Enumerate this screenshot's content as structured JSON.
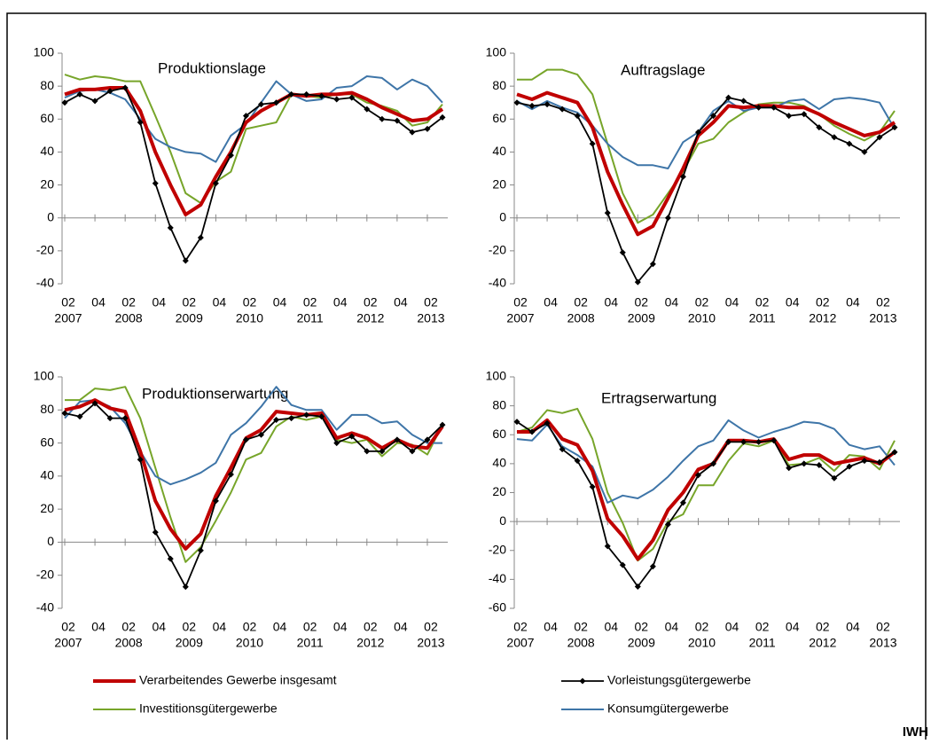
{
  "chart_data": [
    {
      "type": "line",
      "title": "Produktionslage",
      "categories": [
        "02",
        null,
        "04",
        null,
        "02",
        null,
        "04",
        null,
        "02",
        null,
        "04",
        null,
        "02",
        null,
        "04",
        null,
        "02",
        null,
        "04",
        null,
        "02",
        null,
        "04",
        null,
        "02",
        null
      ],
      "years": [
        "2007",
        null,
        null,
        null,
        "2008",
        null,
        null,
        null,
        "2009",
        null,
        null,
        null,
        "2010",
        null,
        null,
        null,
        "2011",
        null,
        null,
        null,
        "2012",
        null,
        null,
        null,
        "2013",
        null
      ],
      "ylim": [
        -40,
        100
      ],
      "yticks": [
        -40,
        -20,
        0,
        20,
        40,
        60,
        80,
        100
      ],
      "series": [
        {
          "name": "Verarbeitendes Gewerbe insgesamt",
          "color": "#c00000",
          "width": 4,
          "values": [
            75,
            78,
            78,
            79,
            79,
            65,
            40,
            20,
            2,
            8,
            25,
            40,
            58,
            65,
            70,
            75,
            74,
            75,
            75,
            76,
            72,
            67,
            63,
            59,
            60,
            66
          ]
        },
        {
          "name": "Vorleistungsgütergewerbe",
          "color": "#000000",
          "width": 1.8,
          "marker": "diamond",
          "values": [
            70,
            75,
            71,
            77,
            79,
            58,
            21,
            -6,
            -26,
            -12,
            21,
            38,
            62,
            69,
            70,
            75,
            75,
            74,
            72,
            73,
            66,
            60,
            59,
            52,
            54,
            61
          ]
        },
        {
          "name": "Investitionsgütergewerbe",
          "color": "#77a52a",
          "width": 2,
          "values": [
            87,
            84,
            86,
            85,
            83,
            83,
            62,
            40,
            15,
            9,
            22,
            28,
            54,
            56,
            58,
            75,
            74,
            73,
            75,
            75,
            70,
            68,
            65,
            56,
            58,
            69
          ]
        },
        {
          "name": "Konsumgütergewerbe",
          "color": "#3e75a8",
          "width": 2,
          "values": [
            73,
            77,
            78,
            76,
            72,
            60,
            48,
            43,
            40,
            39,
            34,
            50,
            57,
            70,
            83,
            75,
            71,
            72,
            79,
            80,
            86,
            85,
            78,
            84,
            80,
            70
          ]
        }
      ]
    },
    {
      "type": "line",
      "title": "Auftragslage",
      "categories": [
        "02",
        null,
        "04",
        null,
        "02",
        null,
        "04",
        null,
        "02",
        null,
        "04",
        null,
        "02",
        null,
        "04",
        null,
        "02",
        null,
        "04",
        null,
        "02",
        null,
        "04",
        null,
        "02",
        null
      ],
      "years": [
        "2007",
        null,
        null,
        null,
        "2008",
        null,
        null,
        null,
        "2009",
        null,
        null,
        null,
        "2010",
        null,
        null,
        null,
        "2011",
        null,
        null,
        null,
        "2012",
        null,
        null,
        null,
        "2013",
        null
      ],
      "ylim": [
        -40,
        100
      ],
      "yticks": [
        -40,
        -20,
        0,
        20,
        40,
        60,
        80,
        100
      ],
      "series": [
        {
          "name": "Verarbeitendes Gewerbe insgesamt",
          "color": "#c00000",
          "width": 4,
          "values": [
            75,
            72,
            76,
            73,
            70,
            55,
            28,
            8,
            -10,
            -5,
            12,
            30,
            50,
            58,
            68,
            67,
            68,
            68,
            67,
            67,
            63,
            58,
            54,
            50,
            52,
            58
          ]
        },
        {
          "name": "Vorleistungsgütergewerbe",
          "color": "#000000",
          "width": 1.8,
          "marker": "diamond",
          "values": [
            70,
            68,
            69,
            66,
            62,
            45,
            3,
            -21,
            -39,
            -28,
            0,
            25,
            52,
            62,
            73,
            71,
            67,
            67,
            62,
            63,
            55,
            49,
            45,
            40,
            49,
            55
          ]
        },
        {
          "name": "Investitionsgütergewerbe",
          "color": "#77a52a",
          "width": 2,
          "values": [
            84,
            84,
            90,
            90,
            87,
            75,
            45,
            15,
            -3,
            2,
            15,
            28,
            45,
            48,
            58,
            64,
            69,
            70,
            70,
            68,
            63,
            56,
            51,
            47,
            52,
            65
          ]
        },
        {
          "name": "Konsumgütergewerbe",
          "color": "#3e75a8",
          "width": 2,
          "values": [
            71,
            66,
            71,
            67,
            64,
            56,
            45,
            37,
            32,
            32,
            30,
            46,
            52,
            65,
            71,
            65,
            67,
            67,
            71,
            72,
            66,
            72,
            73,
            72,
            70,
            54
          ]
        }
      ]
    },
    {
      "type": "line",
      "title": "Produktionserwartung",
      "categories": [
        "02",
        null,
        "04",
        null,
        "02",
        null,
        "04",
        null,
        "02",
        null,
        "04",
        null,
        "02",
        null,
        "04",
        null,
        "02",
        null,
        "04",
        null,
        "02",
        null,
        "04",
        null,
        "02",
        null
      ],
      "years": [
        "2007",
        null,
        null,
        null,
        "2008",
        null,
        null,
        null,
        "2009",
        null,
        null,
        null,
        "2010",
        null,
        null,
        null,
        "2011",
        null,
        null,
        null,
        "2012",
        null,
        null,
        null,
        "2013",
        null
      ],
      "ylim": [
        -40,
        100
      ],
      "yticks": [
        -40,
        -20,
        0,
        20,
        40,
        60,
        80,
        100
      ],
      "series": [
        {
          "name": "Verarbeitendes Gewerbe insgesamt",
          "color": "#c00000",
          "width": 4,
          "values": [
            80,
            82,
            86,
            81,
            79,
            55,
            25,
            8,
            -4,
            5,
            28,
            45,
            63,
            68,
            79,
            78,
            77,
            78,
            63,
            66,
            63,
            57,
            62,
            58,
            57,
            70
          ]
        },
        {
          "name": "Vorleistungsgütergewerbe",
          "color": "#000000",
          "width": 1.8,
          "marker": "diamond",
          "values": [
            78,
            76,
            84,
            75,
            75,
            50,
            6,
            -10,
            -27,
            -5,
            25,
            41,
            62,
            65,
            74,
            75,
            77,
            76,
            60,
            64,
            55,
            55,
            62,
            55,
            62,
            71
          ]
        },
        {
          "name": "Investitionsgütergewerbe",
          "color": "#77a52a",
          "width": 2,
          "values": [
            86,
            86,
            93,
            92,
            94,
            75,
            45,
            15,
            -12,
            -3,
            13,
            30,
            50,
            54,
            70,
            76,
            74,
            76,
            62,
            60,
            62,
            52,
            60,
            59,
            53,
            71
          ]
        },
        {
          "name": "Konsumgütergewerbe",
          "color": "#3e75a8",
          "width": 2,
          "values": [
            75,
            85,
            86,
            82,
            72,
            55,
            40,
            35,
            38,
            42,
            48,
            65,
            72,
            82,
            94,
            83,
            80,
            80,
            68,
            77,
            77,
            72,
            73,
            65,
            60,
            60
          ]
        }
      ]
    },
    {
      "type": "line",
      "title": "Ertragserwartung",
      "categories": [
        "02",
        null,
        "04",
        null,
        "02",
        null,
        "04",
        null,
        "02",
        null,
        "04",
        null,
        "02",
        null,
        "04",
        null,
        "02",
        null,
        "04",
        null,
        "02",
        null,
        "04",
        null,
        "02",
        null
      ],
      "years": [
        "2007",
        null,
        null,
        null,
        "2008",
        null,
        null,
        null,
        "2009",
        null,
        null,
        null,
        "2010",
        null,
        null,
        null,
        "2011",
        null,
        null,
        null,
        "2012",
        null,
        null,
        null,
        "2013",
        null
      ],
      "ylim": [
        -60,
        100
      ],
      "yticks": [
        -60,
        -40,
        -20,
        0,
        20,
        40,
        60,
        80,
        100
      ],
      "series": [
        {
          "name": "Verarbeitendes Gewerbe insgesamt",
          "color": "#c00000",
          "width": 4,
          "values": [
            62,
            62,
            70,
            57,
            53,
            35,
            2,
            -10,
            -26,
            -13,
            8,
            20,
            36,
            40,
            56,
            56,
            55,
            57,
            43,
            46,
            46,
            40,
            42,
            44,
            40,
            48
          ]
        },
        {
          "name": "Vorleistungsgütergewerbe",
          "color": "#000000",
          "width": 1.8,
          "marker": "diamond",
          "values": [
            69,
            62,
            68,
            50,
            42,
            24,
            -17,
            -30,
            -45,
            -31,
            -2,
            13,
            32,
            40,
            55,
            55,
            55,
            56,
            37,
            40,
            39,
            30,
            38,
            42,
            41,
            48
          ]
        },
        {
          "name": "Investitionsgütergewerbe",
          "color": "#77a52a",
          "width": 2,
          "values": [
            62,
            65,
            77,
            75,
            78,
            57,
            20,
            -1,
            -27,
            -19,
            0,
            5,
            25,
            25,
            42,
            54,
            52,
            56,
            39,
            40,
            44,
            35,
            46,
            45,
            36,
            56
          ]
        },
        {
          "name": "Konsumgütergewerbe",
          "color": "#3e75a8",
          "width": 2,
          "values": [
            57,
            56,
            67,
            52,
            46,
            38,
            13,
            18,
            16,
            22,
            31,
            42,
            52,
            56,
            70,
            63,
            58,
            62,
            65,
            69,
            68,
            64,
            53,
            50,
            52,
            39
          ]
        }
      ]
    }
  ],
  "source": "IWH"
}
